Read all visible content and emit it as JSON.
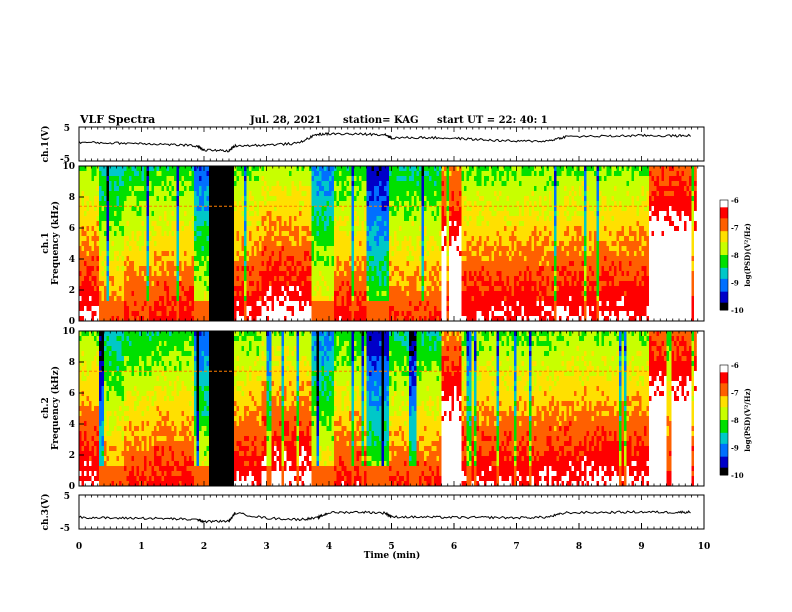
{
  "header": {
    "title": "VLF Spectra",
    "date": "Jul. 28, 2021",
    "station": "station= KAG",
    "start": "start UT =  22: 40: 1"
  },
  "panels": {
    "ch1_voltage": {
      "ylabel": "ch.1(V)",
      "y_ticks": [
        "5",
        "-5"
      ]
    },
    "ch1_spectrogram": {
      "ylabel_line1": "ch.1",
      "ylabel_line2": "Frequency (kHz)",
      "y_ticks": [
        "10",
        "8",
        "6",
        "4",
        "2",
        "0"
      ]
    },
    "ch2_spectrogram": {
      "ylabel_line1": "ch.2",
      "ylabel_line2": "Frequency (kHz)",
      "y_ticks": [
        "10",
        "8",
        "6",
        "4",
        "2",
        "0"
      ]
    },
    "ch3_voltage": {
      "ylabel": "ch.3(V)",
      "y_ticks": [
        "5",
        "-5"
      ]
    }
  },
  "x_axis": {
    "label": "Time (min)",
    "ticks": [
      "0",
      "1",
      "2",
      "3",
      "4",
      "5",
      "6",
      "7",
      "8",
      "9",
      "10"
    ]
  },
  "colorbar": {
    "label": "log(PSD)(V²/Hz)",
    "ticks": [
      "-6",
      "-7",
      "-8",
      "-9",
      "-10"
    ],
    "colors": [
      "#000000",
      "#0000c8",
      "#0070ff",
      "#00c8c8",
      "#00e000",
      "#c8ff00",
      "#ffe000",
      "#ff6000",
      "#ff0000",
      "#ffffff"
    ]
  },
  "chart_data": {
    "type": "heatmap",
    "title": "VLF Spectra",
    "xlabel": "Time (min)",
    "xlim": [
      0,
      10
    ],
    "frequency_ylim_khz": [
      0,
      10
    ],
    "voltage_ylim_v": [
      -5,
      5
    ],
    "color_scale_log_psd": [
      -10,
      -6
    ],
    "spectrogram_levels_by_time_segment": [
      {
        "t": [
          0.0,
          0.3
        ],
        "level": 0.62
      },
      {
        "t": [
          0.3,
          0.7
        ],
        "level": 0.45
      },
      {
        "t": [
          0.7,
          1.2
        ],
        "level": 0.52
      },
      {
        "t": [
          1.2,
          1.8
        ],
        "level": 0.55
      },
      {
        "t": [
          1.8,
          2.05
        ],
        "level": 0.3
      },
      {
        "t": [
          2.05,
          2.45
        ],
        "level": 0.0
      },
      {
        "t": [
          2.45,
          2.9
        ],
        "level": 0.6
      },
      {
        "t": [
          2.9,
          3.7
        ],
        "level": 0.65
      },
      {
        "t": [
          3.7,
          4.05
        ],
        "level": 0.35
      },
      {
        "t": [
          4.05,
          4.6
        ],
        "level": 0.55
      },
      {
        "t": [
          4.6,
          4.95
        ],
        "level": 0.2
      },
      {
        "t": [
          4.95,
          5.8
        ],
        "level": 0.5
      },
      {
        "t": [
          5.8,
          6.1
        ],
        "level": 0.85
      },
      {
        "t": [
          6.1,
          7.7
        ],
        "level": 0.6
      },
      {
        "t": [
          7.7,
          9.1
        ],
        "level": 0.62
      },
      {
        "t": [
          9.1,
          9.85
        ],
        "level": 0.9
      }
    ],
    "transmitter_line_khz": 7.4,
    "ch1_voltage_series": {
      "t": [
        0,
        0.5,
        1.0,
        1.5,
        1.9,
        2.0,
        2.4,
        2.5,
        3.0,
        3.5,
        3.8,
        4.0,
        4.5,
        4.9,
        5.0,
        5.5,
        6.0,
        6.5,
        7.0,
        7.5,
        7.8,
        8.5,
        9.0,
        9.5,
        9.8
      ],
      "v": [
        0.5,
        0.3,
        0.2,
        -0.2,
        -0.6,
        -1.8,
        -2.0,
        -0.5,
        -0.3,
        0.2,
        2.8,
        3.0,
        2.9,
        2.8,
        1.8,
        1.9,
        1.7,
        1.2,
        0.8,
        0.9,
        2.2,
        2.3,
        2.5,
        2.4,
        2.5
      ]
    },
    "ch3_voltage_series": {
      "t": [
        0,
        0.5,
        1.0,
        1.5,
        1.9,
        2.0,
        2.4,
        2.5,
        3.0,
        3.5,
        3.8,
        4.0,
        4.5,
        4.9,
        5.0,
        5.5,
        6.0,
        6.5,
        7.0,
        7.5,
        7.8,
        8.5,
        9.0,
        9.5,
        9.8
      ],
      "v": [
        -1.5,
        -1.8,
        -1.8,
        -2.0,
        -2.3,
        -2.8,
        -2.7,
        -0.3,
        -1.8,
        -2.2,
        -1.8,
        -0.2,
        0.0,
        -0.3,
        -1.4,
        -1.5,
        -1.6,
        -1.6,
        -1.7,
        -1.5,
        -0.2,
        -0.1,
        0.0,
        -0.1,
        0.0
      ]
    }
  }
}
